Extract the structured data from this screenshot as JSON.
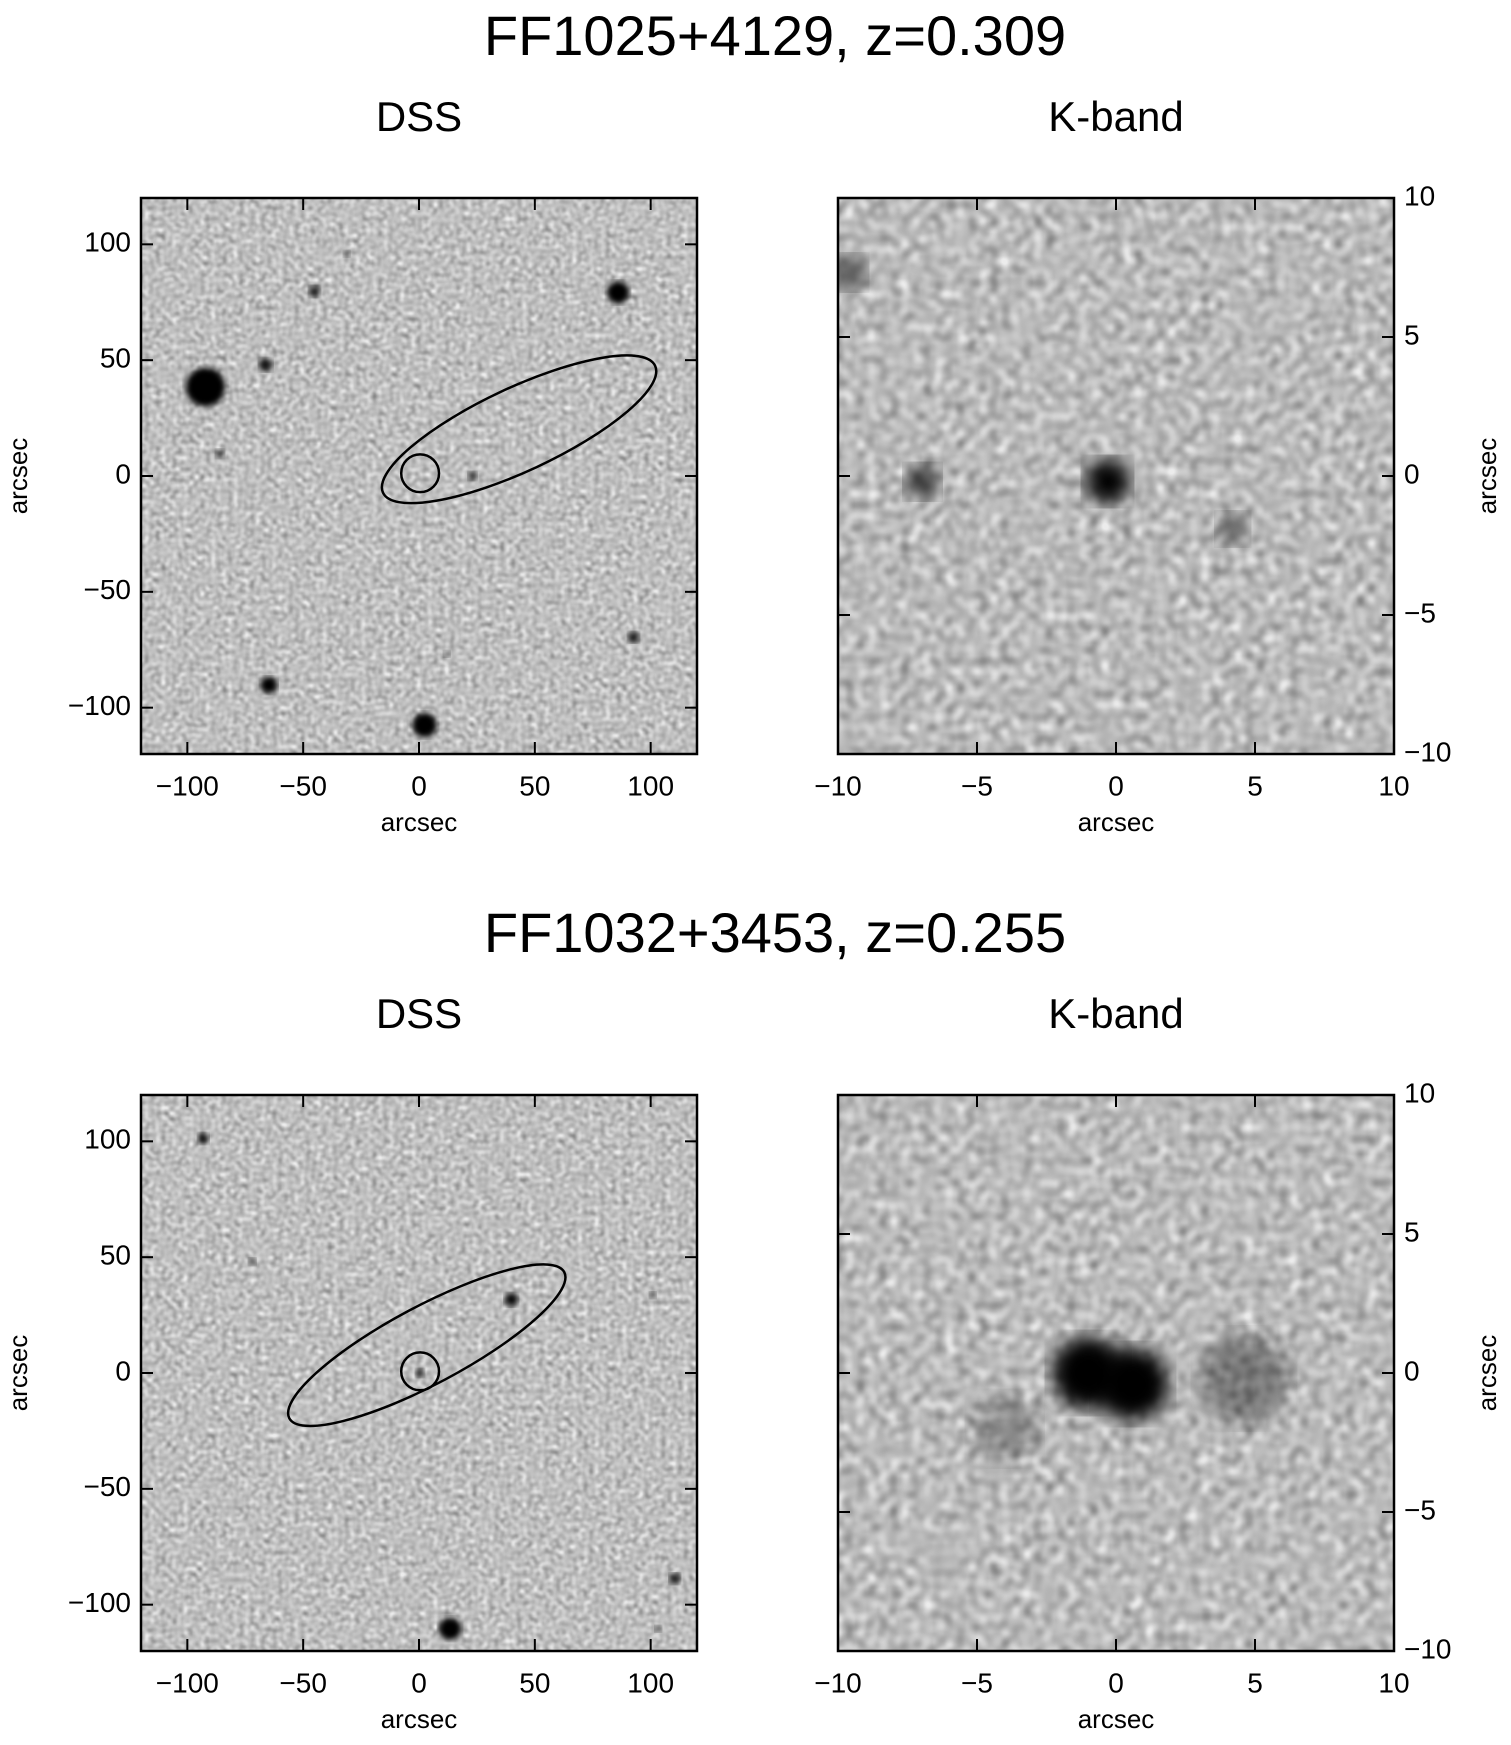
{
  "chart_data": [
    {
      "type": "image",
      "title": "FF1025+4129, z=0.309",
      "subtitle": "DSS",
      "xlabel": "arcsec",
      "ylabel": "arcsec",
      "yaxis_side": "left",
      "xlim": [
        -120,
        120
      ],
      "ylim": [
        -120,
        120
      ],
      "xticks": [
        {
          "value": -100,
          "label": "−100"
        },
        {
          "value": -50,
          "label": "−50"
        },
        0,
        50,
        100
      ],
      "yticks": [
        {
          "value": -100,
          "label": "−100"
        },
        {
          "value": -50,
          "label": "−50"
        },
        0,
        50,
        100
      ]
    },
    {
      "type": "image",
      "subtitle": "K-band",
      "xlabel": "arcsec",
      "ylabel": "arcsec",
      "yaxis_side": "right",
      "xlim": [
        -10,
        10
      ],
      "ylim": [
        -10,
        10
      ],
      "xticks": [
        {
          "value": -10,
          "label": "−10"
        },
        {
          "value": -5,
          "label": "−5"
        },
        0,
        5,
        10
      ],
      "yticks": [
        {
          "value": -10,
          "label": "−10"
        },
        {
          "value": -5,
          "label": "−5"
        },
        0,
        5,
        10
      ]
    },
    {
      "type": "image",
      "title": "FF1032+3453, z=0.255",
      "subtitle": "DSS",
      "xlabel": "arcsec",
      "ylabel": "arcsec",
      "yaxis_side": "left",
      "xlim": [
        -120,
        120
      ],
      "ylim": [
        -120,
        120
      ],
      "xticks": [
        {
          "value": -100,
          "label": "−100"
        },
        {
          "value": -50,
          "label": "−50"
        },
        0,
        50,
        100
      ],
      "yticks": [
        {
          "value": -100,
          "label": "−100"
        },
        {
          "value": -50,
          "label": "−50"
        },
        0,
        50,
        100
      ]
    },
    {
      "type": "image",
      "subtitle": "K-band",
      "xlabel": "arcsec",
      "ylabel": "arcsec",
      "yaxis_side": "right",
      "xlim": [
        -10,
        10
      ],
      "ylim": [
        -10,
        10
      ],
      "xticks": [
        {
          "value": -10,
          "label": "−10"
        },
        {
          "value": -5,
          "label": "−5"
        },
        0,
        5,
        10
      ],
      "yticks": [
        {
          "value": -10,
          "label": "−10"
        },
        {
          "value": -5,
          "label": "−5"
        },
        0,
        5,
        10
      ]
    }
  ]
}
